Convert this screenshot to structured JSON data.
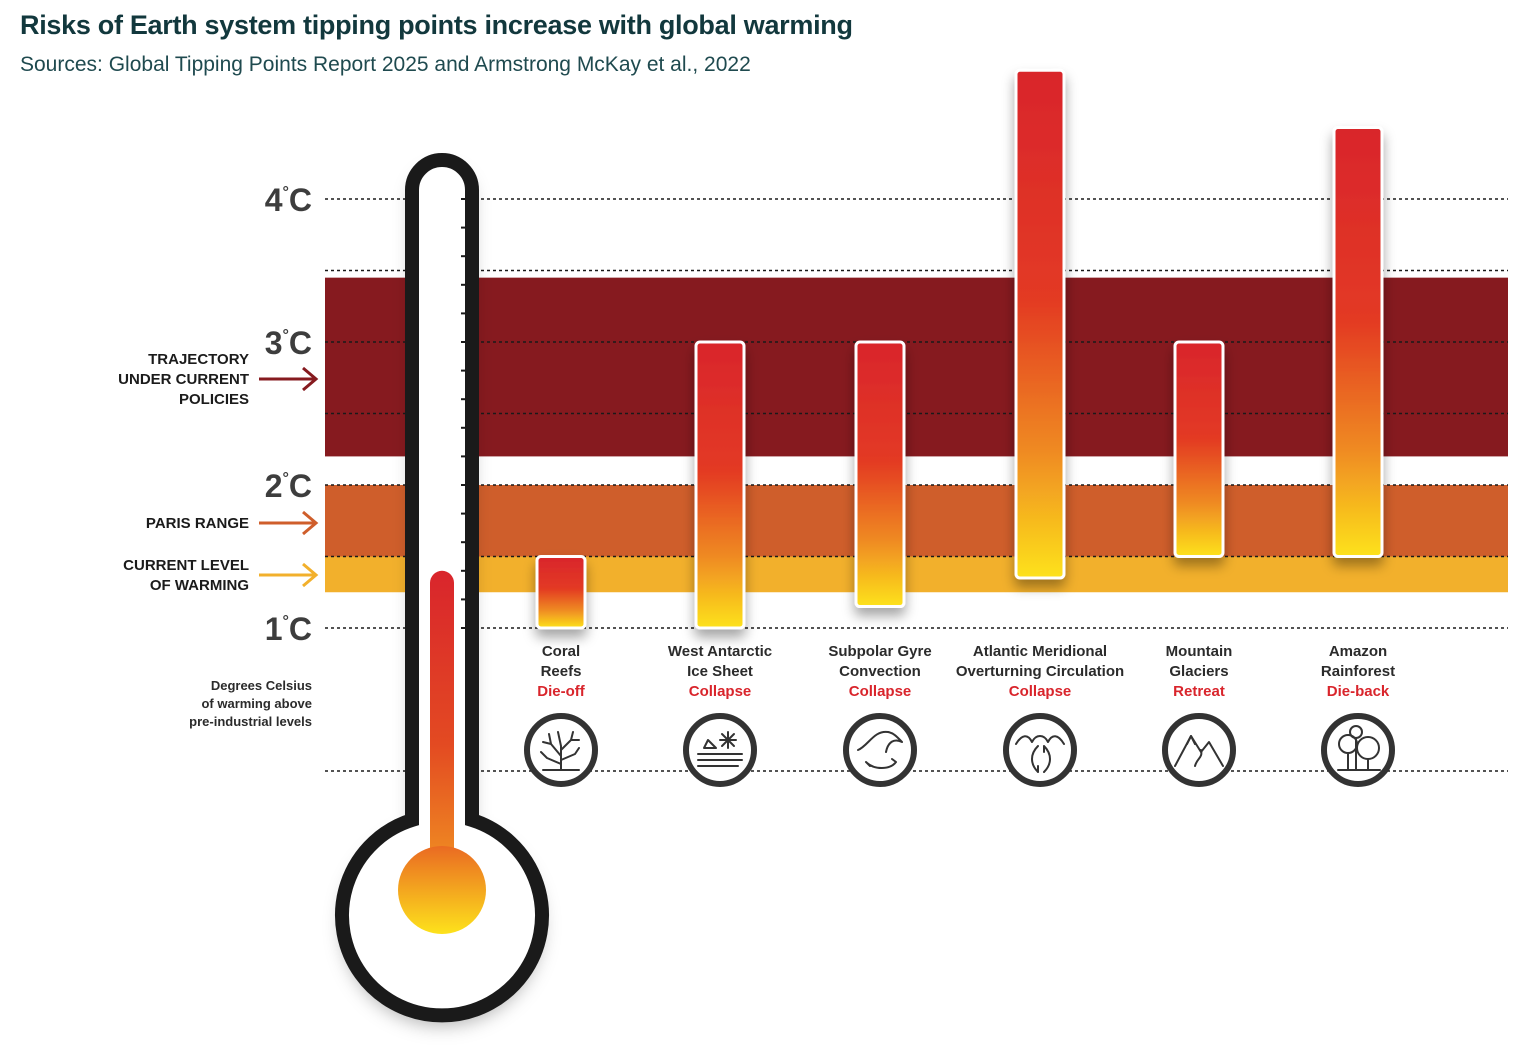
{
  "title": "Risks of Earth system tipping points increase with global warming",
  "subtitle": "Sources: Global Tipping Points Report 2025 and Armstrong McKay et al., 2022",
  "colors": {
    "trajectory_band": "#861a1f",
    "paris_band": "#cf5e2b",
    "current_band": "#f2b02c",
    "bar_top": "#d9252c",
    "bar_bottom": "#fde21c",
    "outcome_text": "#d9252c",
    "thermometer_outline": "#1a1a1a"
  },
  "chart_data": {
    "type": "bar",
    "subtype": "floating-range",
    "y_unit": "°C",
    "y_ticks": [
      1,
      2,
      3,
      4
    ],
    "y_tick_unit": "°C",
    "y_axis_note": [
      "Degrees Celsius",
      "of warming above",
      "pre-industrial levels"
    ],
    "bands": [
      {
        "label": [
          "TRAJECTORY",
          "UNDER CURRENT",
          "POLICIES"
        ],
        "from": 2.2,
        "to": 3.45
      },
      {
        "label": [
          "PARIS RANGE"
        ],
        "from": 1.5,
        "to": 2.0
      },
      {
        "label": [
          "CURRENT LEVEL",
          "OF WARMING"
        ],
        "from": 1.25,
        "to": 1.5
      }
    ],
    "thermometer_level": 1.4,
    "categories": [
      {
        "name": [
          "Coral",
          "Reefs"
        ],
        "outcome": "Die-off",
        "icon": "coral-icon",
        "low": 1.0,
        "high": 1.5
      },
      {
        "name": [
          "West Antarctic",
          "Ice Sheet"
        ],
        "outcome": "Collapse",
        "icon": "ice-sheet-icon",
        "low": 1.0,
        "high": 3.0
      },
      {
        "name": [
          "Subpolar Gyre",
          "Convection"
        ],
        "outcome": "Collapse",
        "icon": "gyre-icon",
        "low": 1.15,
        "high": 3.0
      },
      {
        "name": [
          "Atlantic Meridional",
          "Overturning Circulation"
        ],
        "outcome": "Collapse",
        "icon": "ocean-current-icon",
        "low": 1.35,
        "high": 4.9
      },
      {
        "name": [
          "Mountain",
          "Glaciers"
        ],
        "outcome": "Retreat",
        "icon": "mountain-icon",
        "low": 1.5,
        "high": 3.0
      },
      {
        "name": [
          "Amazon",
          "Rainforest"
        ],
        "outcome": "Die-back",
        "icon": "trees-icon",
        "low": 1.5,
        "high": 4.5
      }
    ]
  }
}
